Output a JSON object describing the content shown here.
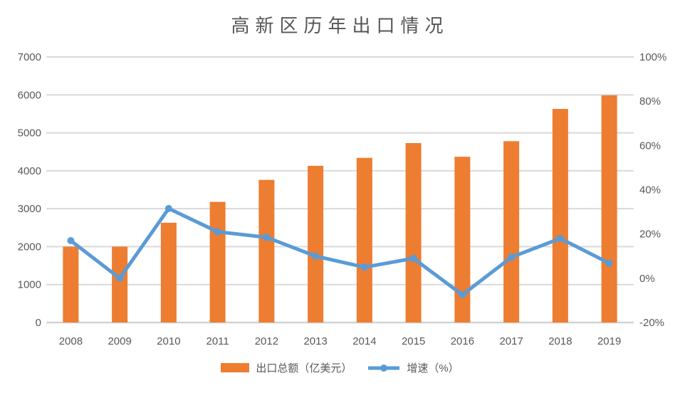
{
  "colors": {
    "bar": "#ED7D31",
    "line": "#5B9BD5",
    "marker": "#5B9BD5",
    "text": "#595959",
    "title_text": "#565656",
    "gridline": "#D9D9D9",
    "baseline": "#D2D2D2",
    "background": "#FFFFFF"
  },
  "chart_data": {
    "type": "bar",
    "subtype": "combo-bar-line-dual-axis",
    "title": "高新区历年出口情况",
    "categories": [
      "2008",
      "2009",
      "2010",
      "2011",
      "2012",
      "2013",
      "2014",
      "2015",
      "2016",
      "2017",
      "2018",
      "2019"
    ],
    "series": [
      {
        "name": "出口总额（亿美元）",
        "type": "bar",
        "axis": "left",
        "color": "#ED7D31",
        "values": [
          2000,
          2000,
          2630,
          3180,
          3760,
          4130,
          4340,
          4730,
          4370,
          4780,
          5630,
          5990
        ]
      },
      {
        "name": "增速（%）",
        "type": "line",
        "axis": "right",
        "color": "#5B9BD5",
        "values": [
          17,
          0,
          31.5,
          21,
          18.5,
          10,
          5,
          9,
          -7.5,
          9.5,
          18,
          6.8
        ]
      }
    ],
    "left_axis": {
      "min": 0,
      "max": 7000,
      "step": 1000,
      "tick_values": [
        0,
        1000,
        2000,
        3000,
        4000,
        5000,
        6000,
        7000
      ],
      "tick_labels": [
        "0",
        "1000",
        "2000",
        "3000",
        "4000",
        "5000",
        "6000",
        "7000"
      ]
    },
    "right_axis": {
      "min": -20,
      "max": 100,
      "step": 20,
      "tick_values": [
        -20,
        0,
        20,
        40,
        60,
        80,
        100
      ],
      "tick_labels": [
        "-20%",
        "0%",
        "20%",
        "40%",
        "60%",
        "80%",
        "100%"
      ]
    },
    "grid": true,
    "legend_position": "bottom"
  }
}
